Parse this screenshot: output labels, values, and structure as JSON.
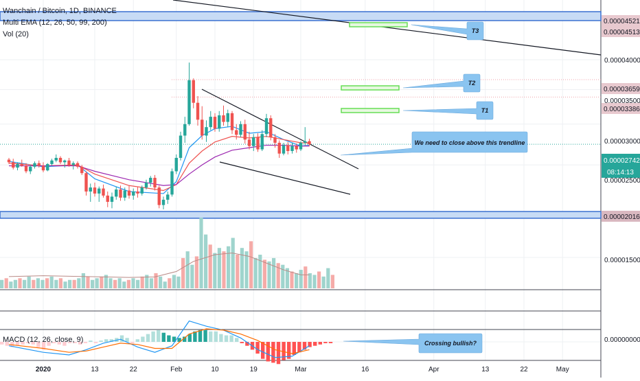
{
  "header": {
    "symbol_line": "Wanchain / Bitcoin, 1D, BINANCE",
    "ema_line": "Multi EMA (12, 26, 50, 99, 200)",
    "vol_line": "Vol (20)",
    "macd_line": "MACD (12, 26, close, 9)"
  },
  "colors": {
    "up": "#26a69a",
    "down": "#ef5350",
    "zone_fill": "#c7dbf5",
    "zone_border": "#3a70d0",
    "target_green": "#66dd55",
    "callout_blue": "#8ac4f0",
    "price_badge_bg": "#e8c9cf",
    "current_badge_bg": "#26a69a"
  },
  "chart_data": {
    "type": "candlestick",
    "price_axis": {
      "scale": "log",
      "labels": [
        "0.00004000",
        "0.00003500",
        "0.00003000",
        "0.00002500",
        "0.00001500"
      ],
      "values": [
        4e-05,
        3.5e-05,
        3e-05,
        2.5e-05,
        1.5e-05
      ]
    },
    "price_badges": [
      {
        "label": "0.00004521",
        "value": 4.521e-05
      },
      {
        "label": "0.00004513",
        "value": 4.513e-05
      },
      {
        "label": "0.00003659",
        "value": 3.659e-05
      },
      {
        "label": "0.00003386",
        "value": 3.386e-05
      },
      {
        "label": "0.00002016",
        "value": 2.016e-05
      }
    ],
    "current_price": {
      "label": "0.00002742",
      "value": 2.742e-05,
      "countdown": "08:14:13"
    },
    "macd_axis_label": "0.00000000",
    "x_axis": {
      "labels": [
        "2020",
        "13",
        "22",
        "Feb",
        "10",
        "19",
        "Mar",
        "16",
        "Apr",
        "13",
        "22",
        "May"
      ],
      "days": [
        0,
        12,
        21,
        31,
        40,
        49,
        60,
        75,
        91,
        103,
        112,
        121
      ]
    },
    "candles": [
      [
        -8,
        2.56e-05,
        2.58e-05,
        2.51e-05,
        2.53e-05
      ],
      [
        -7,
        2.53e-05,
        2.57e-05,
        2.45e-05,
        2.47e-05
      ],
      [
        -6,
        2.47e-05,
        2.53e-05,
        2.44e-05,
        2.51e-05
      ],
      [
        -5,
        2.51e-05,
        2.56e-05,
        2.48e-05,
        2.49e-05
      ],
      [
        -4,
        2.49e-05,
        2.52e-05,
        2.41e-05,
        2.43e-05
      ],
      [
        -3,
        2.43e-05,
        2.5e-05,
        2.4e-05,
        2.48e-05
      ],
      [
        -2,
        2.48e-05,
        2.54e-05,
        2.46e-05,
        2.52e-05
      ],
      [
        -1,
        2.52e-05,
        2.55e-05,
        2.47e-05,
        2.49e-05
      ],
      [
        0,
        2.49e-05,
        2.53e-05,
        2.42e-05,
        2.44e-05
      ],
      [
        1,
        2.44e-05,
        2.52e-05,
        2.43e-05,
        2.51e-05
      ],
      [
        2,
        2.51e-05,
        2.57e-05,
        2.49e-05,
        2.55e-05
      ],
      [
        3,
        2.55e-05,
        2.62e-05,
        2.53e-05,
        2.58e-05
      ],
      [
        4,
        2.58e-05,
        2.6e-05,
        2.51e-05,
        2.53e-05
      ],
      [
        5,
        2.53e-05,
        2.56e-05,
        2.47e-05,
        2.55e-05
      ],
      [
        6,
        2.55e-05,
        2.58e-05,
        2.48e-05,
        2.5e-05
      ],
      [
        7,
        2.5e-05,
        2.54e-05,
        2.45e-05,
        2.52e-05
      ],
      [
        8,
        2.52e-05,
        2.54e-05,
        2.46e-05,
        2.48e-05
      ],
      [
        9,
        2.48e-05,
        2.5e-05,
        2.39e-05,
        2.41e-05
      ],
      [
        10,
        2.41e-05,
        2.43e-05,
        2.18e-05,
        2.22e-05
      ],
      [
        11,
        2.22e-05,
        2.3e-05,
        2.12e-05,
        2.26e-05
      ],
      [
        12,
        2.26e-05,
        2.31e-05,
        2.17e-05,
        2.2e-05
      ],
      [
        13,
        2.2e-05,
        2.27e-05,
        2.12e-05,
        2.25e-05
      ],
      [
        14,
        2.25e-05,
        2.29e-05,
        2.16e-05,
        2.18e-05
      ],
      [
        15,
        2.18e-05,
        2.22e-05,
        2.07e-05,
        2.12e-05
      ],
      [
        16,
        2.12e-05,
        2.21e-05,
        2.06e-05,
        2.17e-05
      ],
      [
        17,
        2.17e-05,
        2.27e-05,
        2.14e-05,
        2.24e-05
      ],
      [
        18,
        2.24e-05,
        2.28e-05,
        2.13e-05,
        2.16e-05
      ],
      [
        19,
        2.16e-05,
        2.26e-05,
        2.13e-05,
        2.23e-05
      ],
      [
        20,
        2.23e-05,
        2.28e-05,
        2.15e-05,
        2.18e-05
      ],
      [
        21,
        2.18e-05,
        2.25e-05,
        2.14e-05,
        2.22e-05
      ],
      [
        22,
        2.22e-05,
        2.27e-05,
        2.16e-05,
        2.2e-05
      ],
      [
        23,
        2.2e-05,
        2.28e-05,
        2.18e-05,
        2.26e-05
      ],
      [
        24,
        2.26e-05,
        2.34e-05,
        2.24e-05,
        2.31e-05
      ],
      [
        25,
        2.31e-05,
        2.38e-05,
        2.27e-05,
        2.36e-05
      ],
      [
        26,
        2.36e-05,
        2.39e-05,
        2.23e-05,
        2.26e-05
      ],
      [
        27,
        2.26e-05,
        2.28e-05,
        2.06e-05,
        2.09e-05
      ],
      [
        28,
        2.09e-05,
        2.17e-05,
        2.05e-05,
        2.14e-05
      ],
      [
        29,
        2.14e-05,
        2.22e-05,
        2.1e-05,
        2.19e-05
      ],
      [
        30,
        2.19e-05,
        2.46e-05,
        2.17e-05,
        2.43e-05
      ],
      [
        31,
        2.43e-05,
        2.62e-05,
        2.4e-05,
        2.58e-05
      ],
      [
        32,
        2.58e-05,
        2.9e-05,
        2.55e-05,
        2.85e-05
      ],
      [
        33,
        2.85e-05,
        3.1e-05,
        2.76e-05,
        3e-05
      ],
      [
        34,
        3e-05,
        3.95e-05,
        2.98e-05,
        3.65e-05
      ],
      [
        35,
        3.65e-05,
        3.68e-05,
        3.22e-05,
        3.3e-05
      ],
      [
        36,
        3.3e-05,
        3.4e-05,
        2.98e-05,
        3.06e-05
      ],
      [
        37,
        3.06e-05,
        3.25e-05,
        2.8e-05,
        2.85e-05
      ],
      [
        38,
        2.85e-05,
        3.05e-05,
        2.77e-05,
        2.96e-05
      ],
      [
        39,
        2.96e-05,
        3.18e-05,
        2.92e-05,
        3.1e-05
      ],
      [
        40,
        3.1e-05,
        3.15e-05,
        2.9e-05,
        2.94e-05
      ],
      [
        41,
        2.94e-05,
        3.18e-05,
        2.9e-05,
        3.12e-05
      ],
      [
        42,
        3.12e-05,
        3.26e-05,
        2.98e-05,
        3.03e-05
      ],
      [
        43,
        3.03e-05,
        3.2e-05,
        2.96e-05,
        3.15e-05
      ],
      [
        44,
        3.15e-05,
        3.18e-05,
        2.87e-05,
        2.92e-05
      ],
      [
        45,
        2.92e-05,
        3e-05,
        2.8e-05,
        2.86e-05
      ],
      [
        46,
        2.86e-05,
        3.04e-05,
        2.83e-05,
        3e-05
      ],
      [
        47,
        3e-05,
        3.06e-05,
        2.75e-05,
        2.8e-05
      ],
      [
        48,
        2.8e-05,
        2.9e-05,
        2.68e-05,
        2.72e-05
      ],
      [
        49,
        2.72e-05,
        2.87e-05,
        2.66e-05,
        2.83e-05
      ],
      [
        50,
        2.83e-05,
        2.88e-05,
        2.65e-05,
        2.68e-05
      ],
      [
        51,
        2.68e-05,
        2.92e-05,
        2.66e-05,
        2.87e-05
      ],
      [
        52,
        2.87e-05,
        3.14e-05,
        2.83e-05,
        3.08e-05
      ],
      [
        53,
        3.08e-05,
        3.12e-05,
        2.79e-05,
        2.83e-05
      ],
      [
        54,
        2.83e-05,
        2.87e-05,
        2.7e-05,
        2.76e-05
      ],
      [
        55,
        2.76e-05,
        2.79e-05,
        2.58e-05,
        2.63e-05
      ],
      [
        56,
        2.63e-05,
        2.76e-05,
        2.61e-05,
        2.73e-05
      ],
      [
        57,
        2.73e-05,
        2.77e-05,
        2.62e-05,
        2.66e-05
      ],
      [
        58,
        2.66e-05,
        2.76e-05,
        2.63e-05,
        2.72e-05
      ],
      [
        59,
        2.72e-05,
        2.75e-05,
        2.64e-05,
        2.68e-05
      ],
      [
        60,
        2.68e-05,
        2.78e-05,
        2.66e-05,
        2.76e-05
      ],
      [
        61,
        2.76e-05,
        2.96e-05,
        2.73e-05,
        2.78e-05
      ],
      [
        62,
        2.78e-05,
        2.81e-05,
        2.72e-05,
        2.74e-05
      ]
    ],
    "ema_series": [
      {
        "color": "#2196f3",
        "points": [
          [
            -8,
            2.54e-05
          ],
          [
            0,
            2.48e-05
          ],
          [
            8,
            2.5e-05
          ],
          [
            12,
            2.35e-05
          ],
          [
            20,
            2.22e-05
          ],
          [
            28,
            2.2e-05
          ],
          [
            31,
            2.32e-05
          ],
          [
            34,
            2.7e-05
          ],
          [
            37,
            2.85e-05
          ],
          [
            40,
            2.94e-05
          ],
          [
            44,
            2.97e-05
          ],
          [
            48,
            2.88e-05
          ],
          [
            52,
            2.9e-05
          ],
          [
            56,
            2.8e-05
          ],
          [
            60,
            2.72e-05
          ],
          [
            62,
            2.73e-05
          ]
        ]
      },
      {
        "color": "#ef5350",
        "points": [
          [
            -8,
            2.52e-05
          ],
          [
            0,
            2.49e-05
          ],
          [
            8,
            2.5e-05
          ],
          [
            12,
            2.4e-05
          ],
          [
            20,
            2.28e-05
          ],
          [
            28,
            2.23e-05
          ],
          [
            31,
            2.29e-05
          ],
          [
            34,
            2.52e-05
          ],
          [
            37,
            2.66e-05
          ],
          [
            40,
            2.77e-05
          ],
          [
            44,
            2.84e-05
          ],
          [
            48,
            2.82e-05
          ],
          [
            52,
            2.84e-05
          ],
          [
            56,
            2.8e-05
          ],
          [
            60,
            2.76e-05
          ],
          [
            62,
            2.76e-05
          ]
        ]
      },
      {
        "color": "#9c27b0",
        "points": [
          [
            -8,
            2.49e-05
          ],
          [
            0,
            2.49e-05
          ],
          [
            8,
            2.49e-05
          ],
          [
            12,
            2.43e-05
          ],
          [
            20,
            2.34e-05
          ],
          [
            28,
            2.28e-05
          ],
          [
            31,
            2.29e-05
          ],
          [
            34,
            2.4e-05
          ],
          [
            37,
            2.5e-05
          ],
          [
            40,
            2.59e-05
          ],
          [
            44,
            2.67e-05
          ],
          [
            48,
            2.7e-05
          ],
          [
            52,
            2.73e-05
          ],
          [
            56,
            2.73e-05
          ],
          [
            60,
            2.72e-05
          ],
          [
            62,
            2.72e-05
          ]
        ]
      }
    ],
    "volume_ma": [
      [
        -8,
        7
      ],
      [
        0,
        7.5
      ],
      [
        10,
        7
      ],
      [
        20,
        6.5
      ],
      [
        26,
        6.8
      ],
      [
        31,
        10
      ],
      [
        35,
        16
      ],
      [
        40,
        20
      ],
      [
        44,
        21
      ],
      [
        48,
        19
      ],
      [
        52,
        15
      ],
      [
        56,
        11
      ],
      [
        60,
        8
      ],
      [
        62,
        8
      ]
    ],
    "volume": [
      5,
      6,
      4,
      5,
      6,
      5,
      7,
      5,
      6,
      5,
      6,
      7,
      5,
      6,
      4,
      5,
      5,
      6,
      9,
      7,
      5,
      6,
      7,
      8,
      6,
      5,
      6,
      4,
      5,
      6,
      5,
      7,
      8,
      6,
      9,
      7,
      4,
      6,
      8,
      7,
      18,
      22,
      14,
      19,
      42,
      32,
      26,
      21,
      24,
      22,
      25,
      30,
      20,
      24,
      22,
      28,
      18,
      20,
      17,
      16,
      18,
      15,
      14,
      12,
      10,
      9,
      11,
      13,
      9,
      8,
      10,
      7,
      12,
      8
    ],
    "macd_hist": [
      -2,
      -3,
      -4,
      -3,
      -2,
      -1,
      -2,
      -4,
      -6,
      -3,
      -1,
      -2,
      -3,
      -1,
      -1,
      -2,
      -1,
      1,
      -1,
      1,
      2,
      2,
      3,
      5,
      3,
      -1,
      2,
      4,
      6,
      8,
      9,
      7,
      5,
      4,
      3,
      4,
      6,
      8,
      9,
      9,
      8,
      8,
      6,
      5,
      5,
      3,
      -1,
      -3,
      -6,
      -9,
      -13,
      -15,
      -16,
      -17,
      -14,
      -13,
      -10,
      -8,
      -6,
      -4,
      -3,
      -2,
      -1,
      -1
    ],
    "macd_line": [
      [
        -8,
        -3
      ],
      [
        0,
        -8
      ],
      [
        6,
        -10
      ],
      [
        10,
        -6
      ],
      [
        14,
        -1
      ],
      [
        18,
        2
      ],
      [
        22,
        -4
      ],
      [
        26,
        -8
      ],
      [
        30,
        -3
      ],
      [
        34,
        16
      ],
      [
        38,
        12
      ],
      [
        42,
        9
      ],
      [
        46,
        3
      ],
      [
        50,
        -6
      ],
      [
        54,
        -12
      ],
      [
        58,
        -11
      ],
      [
        62,
        -3
      ]
    ],
    "signal_line": [
      [
        -8,
        -2
      ],
      [
        0,
        -5
      ],
      [
        6,
        -8
      ],
      [
        10,
        -7
      ],
      [
        14,
        -4
      ],
      [
        18,
        -1
      ],
      [
        22,
        -2
      ],
      [
        26,
        -5
      ],
      [
        30,
        -5
      ],
      [
        34,
        6
      ],
      [
        38,
        10
      ],
      [
        42,
        9
      ],
      [
        46,
        6
      ],
      [
        50,
        1
      ],
      [
        54,
        -6
      ],
      [
        58,
        -9
      ],
      [
        62,
        -6
      ]
    ]
  },
  "drawings": {
    "resistance_zone_top": {
      "from": 4.5e-05,
      "to": 4.59e-05
    },
    "support_zone": {
      "from": 1.97e-05,
      "to": 2.03e-05
    },
    "targets": [
      {
        "label": "T3",
        "value": 4.52e-05
      },
      {
        "label": "T2",
        "value": 3.66e-05
      },
      {
        "label": "T1",
        "value": 3.39e-05
      }
    ],
    "callouts": [
      {
        "id": "trendline-note",
        "text": "We need to close above this trendline"
      },
      {
        "id": "macd-note",
        "text": "Crossing bullish?"
      }
    ]
  }
}
